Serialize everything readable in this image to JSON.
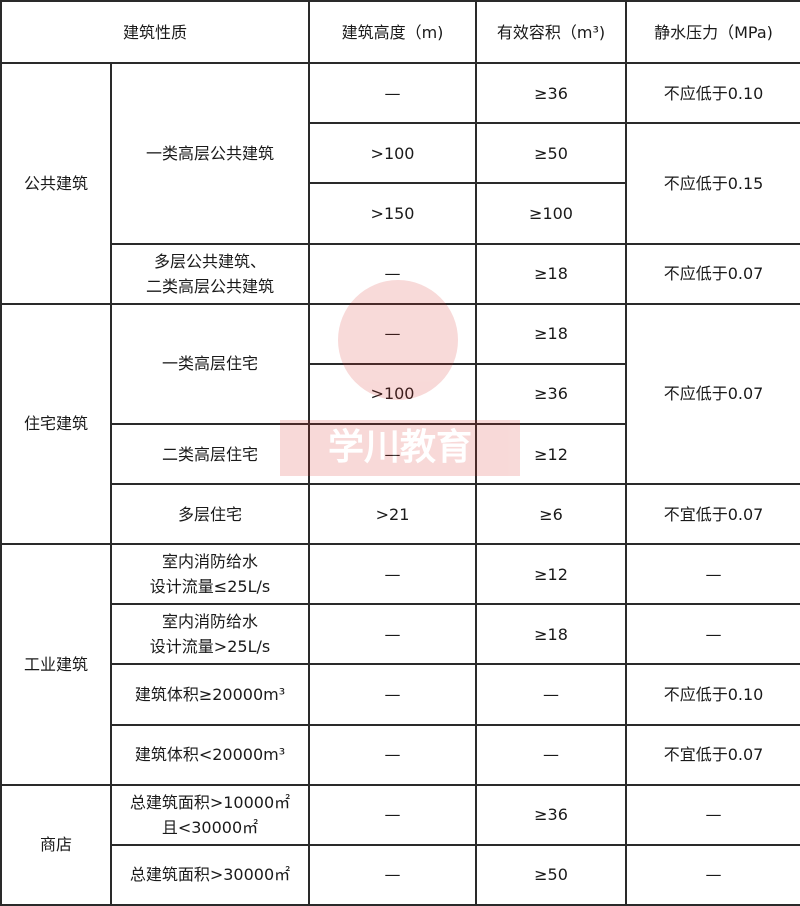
{
  "header": [
    "建筑性质",
    "建筑高度（m)",
    "有效容积（m³)",
    "静水压力（MPa)"
  ],
  "watermark": "学川教育",
  "rows": [
    [
      "公共建筑",
      "一类高层公共建筑",
      "—",
      "≥36",
      "不应低于0.10"
    ],
    [
      ">100",
      "≥50",
      "不应低于0.15"
    ],
    [
      ">150",
      "≥100"
    ],
    [
      "多层公共建筑、\n二类高层公共建筑",
      "—",
      "≥18",
      "不应低于0.07"
    ],
    [
      "住宅建筑",
      "一类高层住宅",
      "—",
      "≥18",
      "不应低于0.07"
    ],
    [
      ">100",
      "≥36"
    ],
    [
      "二类高层住宅",
      "—",
      "≥12"
    ],
    [
      "多层住宅",
      ">21",
      "≥6",
      "不宜低于0.07"
    ],
    [
      "工业建筑",
      "室内消防给水\n设计流量≤25L/s",
      "—",
      "≥12",
      "—"
    ],
    [
      "室内消防给水\n设计流量>25L/s",
      "—",
      "≥18",
      "—"
    ],
    [
      "建筑体积≥20000m³",
      "—",
      "—",
      "不应低于0.10"
    ],
    [
      "建筑体积<20000m³",
      "—",
      "—",
      "不宜低于0.07"
    ],
    [
      "商店",
      "总建筑面积>10000㎡\n且<30000㎡",
      "—",
      "≥36",
      "—"
    ],
    [
      "总建筑面积>30000㎡",
      "—",
      "≥50",
      "—"
    ]
  ]
}
